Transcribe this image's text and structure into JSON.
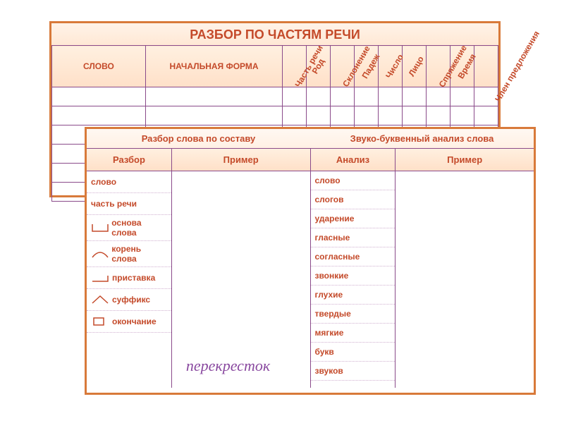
{
  "back": {
    "title": "РАЗБОР ПО ЧАСТЯМ РЕЧИ",
    "cols": {
      "slovo": "СЛОВО",
      "nach": "НАЧАЛЬНАЯ ФОРМА",
      "thin": [
        "Часть речи",
        "Род",
        "Склонение",
        "Падеж",
        "Число",
        "Лицо",
        "Спряжение",
        "Время",
        "Член предложения"
      ]
    },
    "empty_rows": 6
  },
  "front": {
    "left": {
      "title": "Разбор слова по составу",
      "colA": "Разбор",
      "colB": "Пример",
      "rows": [
        {
          "label": "слово",
          "sym": null
        },
        {
          "label": "часть речи",
          "sym": null
        },
        {
          "label": "основа слова",
          "sym": "osnova"
        },
        {
          "label": "корень слова",
          "sym": "koren"
        },
        {
          "label": "приставка",
          "sym": "pristavka"
        },
        {
          "label": "суффикс",
          "sym": "suffix"
        },
        {
          "label": "окончание",
          "sym": "okonch"
        }
      ],
      "example_word": "перекресток"
    },
    "right": {
      "title": "Звуко-буквенный анализ слова",
      "colA": "Анализ",
      "colB": "Пример",
      "rows": [
        "слово",
        "слогов",
        "ударение",
        "гласные",
        "согласные",
        "звонкие",
        "глухие",
        "твердые",
        "мягкие",
        "букв",
        "звуков"
      ]
    }
  },
  "colors": {
    "frame": "#d87a3a",
    "heading": "#c44a2a",
    "rule": "#8a4a8a",
    "example": "#8a4aa0"
  }
}
